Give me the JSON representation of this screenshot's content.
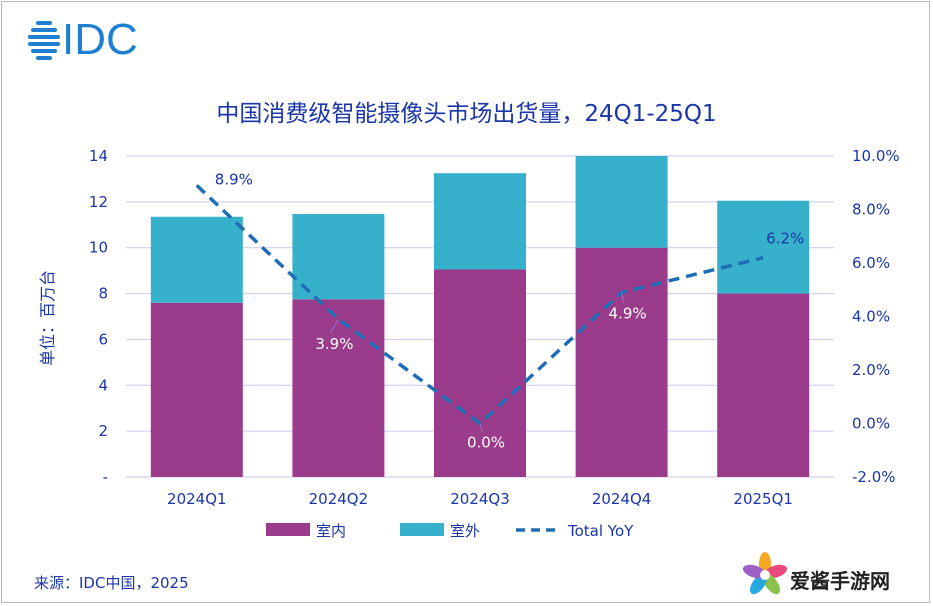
{
  "brand": {
    "logo_text": "IDC",
    "color": "#1f7fd1"
  },
  "chart_data": {
    "type": "bar",
    "stacked": true,
    "title": "中国消费级智能摄像头市场出货量，24Q1-25Q1",
    "ylabel": "单位：百万台",
    "categories": [
      "2024Q1",
      "2024Q2",
      "2024Q3",
      "2024Q4",
      "2025Q1"
    ],
    "ylim": [
      0,
      14
    ],
    "yticks": [
      0,
      2,
      4,
      6,
      8,
      10,
      12,
      14
    ],
    "ytick_labels": [
      "-",
      "2",
      "4",
      "6",
      "8",
      "10",
      "12",
      "14"
    ],
    "series": [
      {
        "name": "室内",
        "color": "#9b3b8c",
        "values": [
          7.6,
          7.75,
          9.05,
          10.0,
          8.0
        ]
      },
      {
        "name": "室外",
        "color": "#36b0cb",
        "values": [
          3.75,
          3.72,
          4.2,
          4.0,
          4.05
        ]
      }
    ],
    "line": {
      "name": "Total YoY",
      "color": "#1f6db5",
      "values": [
        8.9,
        3.9,
        0.0,
        4.9,
        6.2
      ],
      "labels": [
        "8.9%",
        "3.9%",
        "0.0%",
        "4.9%",
        "6.2%"
      ]
    },
    "y2lim": [
      -2.0,
      10.0
    ],
    "y2ticks": [
      -2,
      0,
      2,
      4,
      6,
      8,
      10
    ],
    "y2tick_labels": [
      "-2.0%",
      "0.0%",
      "2.0%",
      "4.0%",
      "6.0%",
      "8.0%",
      "10.0%"
    ],
    "legend": [
      "室内",
      "室外",
      "Total YoY"
    ],
    "grid": true
  },
  "source": "来源：IDC中国，2025",
  "watermark": {
    "text": "爱酱手游网"
  }
}
